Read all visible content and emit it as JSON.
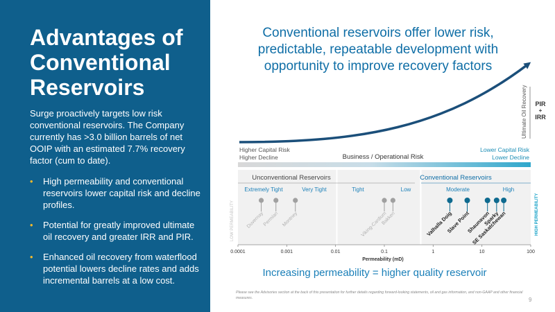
{
  "left": {
    "title": "Advantages of Conventional Reservoirs",
    "intro": "Surge proactively targets low risk conventional reservoirs. The Company currently has >3.0 billion barrels of net OOIP with an estimated 7.7% recovery factor (cum to date).",
    "bullets": [
      "High permeability and conventional reservoirs lower capital risk and decline profiles.",
      "Potential for greatly improved ultimate oil recovery and greater IRR and PIR.",
      "Enhanced oil recovery from waterflood potential lowers decline rates and adds incremental barrels at a low cost."
    ]
  },
  "headline": "Conventional reservoirs offer lower risk, predictable, repeatable development with opportunity to improve recovery factors",
  "curve": {
    "y_axis_label": "Ultimate Oil Recovery",
    "pir": "PIR",
    "plus": "+",
    "irr": "IRR"
  },
  "risk_bar": {
    "left_line1": "Higher Capital Risk",
    "left_line2": "Higher Decline",
    "center": "Business / Operational Risk",
    "right_line1": "Lower Capital Risk",
    "right_line2": "Lower Decline"
  },
  "reservoir_types": {
    "unconventional": "Unconventional Reservoirs",
    "conventional": "Conventional Reservoirs"
  },
  "perm_classes": [
    "Extremely Tight",
    "Very Tight",
    "Tight",
    "Low",
    "Moderate",
    "High"
  ],
  "side_labels": {
    "low": "LOW PERMEABILITY",
    "high": "HIGH PERMEABILITY"
  },
  "chart_data": {
    "type": "scatter",
    "xlabel": "Permeability (mD)",
    "xscale": "log",
    "xlim": [
      0.0001,
      100
    ],
    "x_ticks": [
      "0.0001",
      "0.001",
      "0.01",
      "0.1",
      "1",
      "10",
      "100"
    ],
    "series": [
      {
        "name": "Unconventional",
        "points": [
          {
            "label": "Duvernay",
            "x": 0.0003
          },
          {
            "label": "Permian",
            "x": 0.0006
          },
          {
            "label": "Montney",
            "x": 0.0015
          },
          {
            "label": "Viking-Cardium",
            "x": 0.1
          },
          {
            "label": "Bakken",
            "x": 0.15
          }
        ]
      },
      {
        "name": "Conventional",
        "points": [
          {
            "label": "Valhalla Doig",
            "x": 2.2
          },
          {
            "label": "Slave Point",
            "x": 5
          },
          {
            "label": "Shaunavon",
            "x": 13
          },
          {
            "label": "Sparky",
            "x": 20
          },
          {
            "label": "SE Saskatchewan",
            "x": 28
          }
        ]
      }
    ]
  },
  "tagline": "Increasing permeability = higher quality reservoir",
  "footnote": "Please see the Advisories section at the back of this presentation for further details regarding forward-looking statements, oil and gas information, and non-GAAP and other financial measures.",
  "page_number": "9",
  "colors": {
    "panel": "#0f5f8c",
    "accent": "#0f6ea6",
    "conventional_pin": "#0e6a8f",
    "unconventional_pin": "#a0a0a0",
    "bullet": "#f1b92b"
  }
}
